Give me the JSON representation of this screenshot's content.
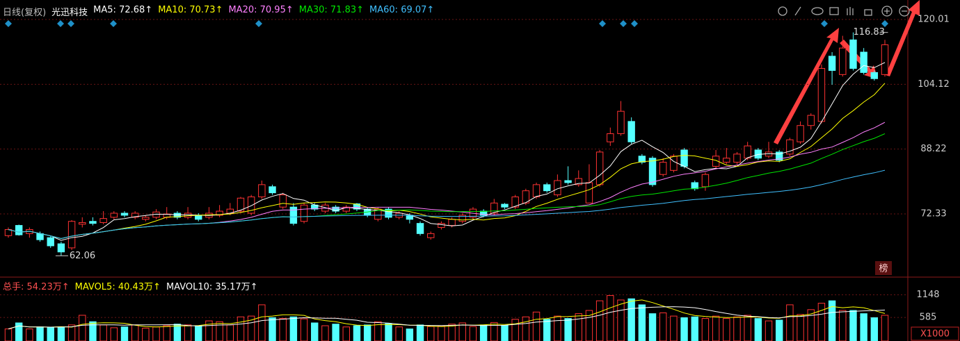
{
  "chart_data": {
    "type": "candlestick",
    "period": "日线(复权)",
    "title": "光迅科技",
    "indicators": [
      {
        "label": "MA5: 72.68↑",
        "color": "#ffffff"
      },
      {
        "label": "MA10: 70.73↑",
        "color": "#ffff00"
      },
      {
        "label": "MA20: 70.95↑",
        "color": "#ff80ff"
      },
      {
        "label": "MA30: 71.83↑",
        "color": "#00e600"
      },
      {
        "label": "MA60: 69.07↑",
        "color": "#40c0ff"
      }
    ],
    "up_color": "#ff3232",
    "down_color": "#54ffff",
    "open": [
      67,
      69.5,
      67.5,
      67.5,
      66.5,
      65,
      64,
      69.8,
      70.5,
      70.2,
      71.5,
      72.5,
      71.5,
      71,
      71.5,
      71.5,
      72.5,
      71.5,
      72,
      71.5,
      72,
      72.5,
      73,
      72.5,
      76.5,
      79,
      74,
      74,
      70.5,
      74.5,
      73,
      74,
      73,
      74.8,
      73.5,
      71,
      73.5,
      71.5,
      72,
      70,
      66.5,
      69,
      69.5,
      70.5,
      71.5,
      73,
      72.5,
      74.7,
      74,
      75,
      76.5,
      79.5,
      77,
      80.5,
      79.5,
      75,
      79.5,
      90,
      92,
      95,
      86.5,
      86,
      82,
      83,
      88,
      80,
      79,
      84,
      85,
      85,
      86,
      88,
      86.5,
      87.5,
      87,
      90,
      94,
      95,
      111,
      106.5,
      115,
      112,
      107,
      106.5
    ],
    "high": [
      69,
      69.7,
      69,
      68,
      67,
      65.5,
      70.8,
      71.5,
      71.5,
      73,
      73,
      73,
      73,
      72,
      73.5,
      74,
      73,
      74,
      72.5,
      74,
      74.5,
      75,
      76.5,
      77,
      80.5,
      79.5,
      77.5,
      75,
      75,
      75,
      75,
      74.5,
      74.5,
      75,
      74,
      74,
      74,
      73,
      72.5,
      70.5,
      68,
      70.5,
      71.5,
      72.5,
      74,
      73.5,
      76,
      75,
      77,
      78.5,
      80,
      80,
      82,
      84,
      83,
      84.5,
      88,
      93.5,
      100,
      96,
      87,
      86.5,
      86,
      87,
      88.5,
      80.5,
      82.5,
      88,
      88.5,
      87.5,
      90,
      88.5,
      90,
      88,
      91,
      95,
      97,
      109,
      112,
      116,
      116.83,
      113,
      107.5,
      115
    ],
    "low": [
      66.5,
      67,
      66.5,
      65.5,
      64,
      62.06,
      63.5,
      69,
      69.5,
      69.8,
      71,
      71.5,
      71,
      70.5,
      71,
      71,
      71,
      71,
      70.5,
      71,
      71.5,
      72,
      72.5,
      72,
      76,
      77,
      73.5,
      69.5,
      70,
      73,
      72.5,
      72.5,
      72.5,
      73,
      71.5,
      70.5,
      71,
      71,
      70,
      67,
      66,
      68.5,
      69,
      70,
      71,
      71.5,
      72,
      73.5,
      73.5,
      74.5,
      76,
      77.5,
      76.5,
      79.5,
      79,
      75,
      79,
      89,
      91.5,
      89.5,
      84.5,
      79,
      81.5,
      82.5,
      83.5,
      78,
      78,
      83.5,
      84.5,
      84.5,
      85.5,
      85.5,
      86,
      85,
      86.5,
      89.5,
      93,
      94.5,
      104,
      106,
      107.5,
      106.5,
      105,
      106
    ],
    "close": [
      68.5,
      67.2,
      68.5,
      66,
      64.5,
      63,
      70.5,
      70.2,
      70,
      71.2,
      72.5,
      72,
      72.5,
      71.5,
      72.8,
      72.3,
      71.5,
      72.5,
      71,
      72.5,
      73,
      73.5,
      76.2,
      76.5,
      79.5,
      77.5,
      77,
      70,
      74.5,
      73.5,
      74.5,
      73,
      74,
      73.5,
      72,
      73.5,
      71.5,
      72.5,
      71,
      67.5,
      67.5,
      70,
      71,
      72,
      73.5,
      72,
      75,
      74,
      76.5,
      78,
      79.5,
      78,
      80.5,
      80,
      81,
      80,
      87.5,
      92,
      97.5,
      90,
      85,
      79.5,
      85,
      86.5,
      84,
      78.5,
      82,
      86.5,
      86,
      87,
      89,
      86,
      87.5,
      85.5,
      90.5,
      94,
      96.5,
      108,
      107.5,
      113,
      108,
      107,
      105.5,
      113.8
    ],
    "ylim": [
      57,
      124.78
    ],
    "yticks": [
      72.33,
      88.22,
      104.12,
      120.01
    ],
    "high_label": "116.83",
    "low_label": "62.06",
    "volume": {
      "headers": [
        {
          "label": "总手: 54.23万↑",
          "color": "#ff5050"
        },
        {
          "label": "MAVOL5: 40.43万↑",
          "color": "#ffff00"
        },
        {
          "label": "MAVOL10: 35.17万↑",
          "color": "#ffffff"
        }
      ],
      "values": [
        300,
        450,
        300,
        350,
        330,
        350,
        400,
        640,
        480,
        400,
        330,
        350,
        400,
        320,
        350,
        380,
        420,
        400,
        380,
        500,
        480,
        400,
        600,
        620,
        900,
        580,
        560,
        600,
        550,
        450,
        380,
        420,
        350,
        380,
        400,
        480,
        430,
        350,
        300,
        400,
        360,
        380,
        420,
        450,
        360,
        400,
        460,
        380,
        540,
        600,
        720,
        540,
        620,
        560,
        680,
        760,
        1000,
        1130,
        1020,
        1050,
        900,
        680,
        700,
        620,
        580,
        600,
        560,
        620,
        560,
        600,
        640,
        560,
        500,
        520,
        900,
        660,
        780,
        940,
        1000,
        760,
        760,
        680,
        580,
        640
      ],
      "ylim": [
        0,
        1520
      ],
      "yticks": [
        585,
        1148
      ],
      "unit": "X1000"
    },
    "badge": "榜"
  }
}
